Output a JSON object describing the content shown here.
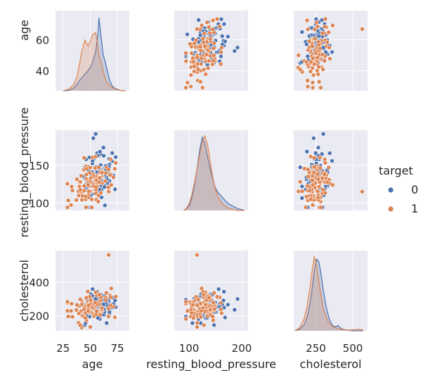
{
  "chart_data": {
    "type": "pairplot",
    "variables": [
      "age",
      "resting_blood_pressure",
      "cholesterol"
    ],
    "hue": "target",
    "legend": {
      "title": "target",
      "placement": "right",
      "entries": [
        {
          "label": "0",
          "color": "#4c72b0"
        },
        {
          "label": "1",
          "color": "#dd8452"
        }
      ]
    },
    "axes": {
      "age": {
        "label": "age",
        "range": [
          18,
          86
        ],
        "ticks": [
          25,
          50,
          75
        ],
        "tick_labels": [
          "25",
          "50",
          "75"
        ],
        "ylim": [
          27,
          79
        ],
        "yticks": [
          40,
          60
        ],
        "ytick_labels": [
          "40",
          "60"
        ]
      },
      "resting_blood_pressure": {
        "label": "resting_blood_pressure",
        "range": [
          72,
          212
        ],
        "ticks": [
          100,
          200
        ],
        "tick_labels": [
          "100",
          "200"
        ],
        "ylim": [
          90,
          197
        ],
        "yticks": [
          100,
          150
        ],
        "ytick_labels": [
          "100",
          "150"
        ]
      },
      "cholesterol": {
        "label": "cholesterol",
        "range": [
          100,
          600
        ],
        "ticks": [
          250,
          500
        ],
        "tick_labels": [
          "250",
          "500"
        ],
        "ylim": [
          110,
          590
        ],
        "yticks": [
          200,
          400
        ],
        "ytick_labels": [
          "200",
          "400"
        ]
      }
    },
    "grid": true,
    "background": "#eaeaf2",
    "kde": {
      "age": {
        "x": [
          25,
          30,
          35,
          38,
          40,
          42,
          45,
          48,
          50,
          52,
          55,
          57,
          58,
          60,
          62,
          64,
          66,
          68,
          70,
          72,
          75,
          78,
          82
        ],
        "target_0": [
          0,
          0.005,
          0.04,
          0.09,
          0.14,
          0.17,
          0.22,
          0.27,
          0.31,
          0.38,
          0.52,
          0.75,
          0.98,
          0.72,
          0.48,
          0.38,
          0.25,
          0.14,
          0.07,
          0.04,
          0.02,
          0.005,
          0
        ],
        "target_1": [
          0,
          0.02,
          0.09,
          0.2,
          0.35,
          0.52,
          0.68,
          0.6,
          0.66,
          0.75,
          0.78,
          0.6,
          0.48,
          0.38,
          0.26,
          0.16,
          0.1,
          0.07,
          0.05,
          0.03,
          0.015,
          0.005,
          0
        ]
      },
      "resting_blood_pressure": {
        "x": [
          90,
          95,
          100,
          105,
          110,
          115,
          120,
          125,
          130,
          135,
          140,
          145,
          150,
          155,
          160,
          165,
          170,
          175,
          180,
          185,
          190,
          195,
          200,
          205
        ],
        "target_0": [
          0,
          0.02,
          0.06,
          0.16,
          0.32,
          0.55,
          0.8,
          0.98,
          0.9,
          0.72,
          0.56,
          0.42,
          0.3,
          0.24,
          0.2,
          0.16,
          0.12,
          0.09,
          0.07,
          0.05,
          0.03,
          0.02,
          0.01,
          0
        ],
        "target_1": [
          0,
          0.03,
          0.09,
          0.2,
          0.36,
          0.55,
          0.74,
          0.92,
          1.0,
          0.88,
          0.66,
          0.44,
          0.28,
          0.18,
          0.12,
          0.08,
          0.05,
          0.03,
          0.02,
          0.01,
          0,
          0,
          0,
          0
        ]
      },
      "cholesterol": {
        "x": [
          110,
          140,
          170,
          190,
          210,
          225,
          240,
          255,
          270,
          285,
          300,
          320,
          340,
          360,
          380,
          400,
          420,
          450,
          500,
          540,
          570
        ],
        "target_0": [
          0,
          0.02,
          0.08,
          0.18,
          0.36,
          0.58,
          0.82,
          0.96,
          0.92,
          0.76,
          0.54,
          0.32,
          0.16,
          0.08,
          0.05,
          0.07,
          0.03,
          0.01,
          0,
          0,
          0
        ],
        "target_1": [
          0,
          0.04,
          0.16,
          0.32,
          0.58,
          0.82,
          1.0,
          0.86,
          0.66,
          0.46,
          0.3,
          0.18,
          0.1,
          0.06,
          0.04,
          0.03,
          0.02,
          0.01,
          0.01,
          0.02,
          0.01
        ]
      }
    }
  }
}
